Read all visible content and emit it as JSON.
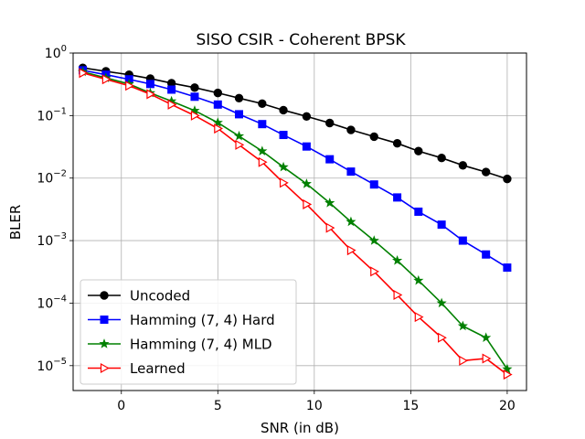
{
  "chart_data": {
    "type": "line",
    "title": "SISO CSIR - Coherent BPSK",
    "xlabel": "SNR (in dB)",
    "ylabel": "BLER",
    "xlim": [
      -2.5,
      21.0
    ],
    "ylim": [
      4e-06,
      1.0
    ],
    "yscale": "log",
    "grid": true,
    "legend_position": "lower-left",
    "xticks": [
      0,
      5,
      10,
      15,
      20
    ],
    "xtick_labels": [
      "0",
      "5",
      "10",
      "15",
      "20"
    ],
    "yticks": [
      1,
      0.1,
      0.01,
      0.001,
      0.0001,
      1e-05
    ],
    "ytick_labels": [
      {
        "base": "10",
        "exp": "0"
      },
      {
        "base": "10",
        "exp": "−1"
      },
      {
        "base": "10",
        "exp": "−2"
      },
      {
        "base": "10",
        "exp": "−3"
      },
      {
        "base": "10",
        "exp": "−4"
      },
      {
        "base": "10",
        "exp": "−5"
      }
    ],
    "x": [
      -2,
      -0.8,
      0.4,
      1.5,
      2.6,
      3.8,
      5.0,
      6.1,
      7.3,
      8.4,
      9.6,
      10.8,
      11.9,
      13.1,
      14.3,
      15.4,
      16.6,
      17.7,
      18.9,
      20.0
    ],
    "series": [
      {
        "name": "Uncoded",
        "color": "#000000",
        "marker": "circle",
        "values": [
          0.58,
          0.51,
          0.45,
          0.39,
          0.33,
          0.28,
          0.23,
          0.19,
          0.155,
          0.122,
          0.097,
          0.076,
          0.059,
          0.046,
          0.036,
          0.027,
          0.021,
          0.016,
          0.0125,
          0.0097
        ]
      },
      {
        "name": "Hamming (7, 4) Hard",
        "color": "#0000ff",
        "marker": "square",
        "values": [
          0.53,
          0.45,
          0.38,
          0.32,
          0.26,
          0.2,
          0.15,
          0.105,
          0.073,
          0.049,
          0.032,
          0.02,
          0.0127,
          0.0079,
          0.0049,
          0.0029,
          0.0018,
          0.001,
          0.0006,
          0.00037
        ]
      },
      {
        "name": "Hamming (7, 4) MLD",
        "color": "#008000",
        "marker": "star",
        "values": [
          0.5,
          0.4,
          0.32,
          0.23,
          0.17,
          0.12,
          0.077,
          0.047,
          0.027,
          0.015,
          0.0081,
          0.004,
          0.002,
          0.001,
          0.00048,
          0.00023,
          0.0001,
          4.3e-05,
          2.8e-05,
          8.8e-06
        ]
      },
      {
        "name": "Learned",
        "color": "#ff0000",
        "marker": "triangle-right",
        "values": [
          0.48,
          0.38,
          0.3,
          0.22,
          0.15,
          0.1,
          0.062,
          0.034,
          0.018,
          0.0084,
          0.0038,
          0.0016,
          0.0007,
          0.00032,
          0.000135,
          6e-05,
          2.8e-05,
          1.2e-05,
          1.3e-05,
          7.2e-06
        ]
      }
    ]
  }
}
